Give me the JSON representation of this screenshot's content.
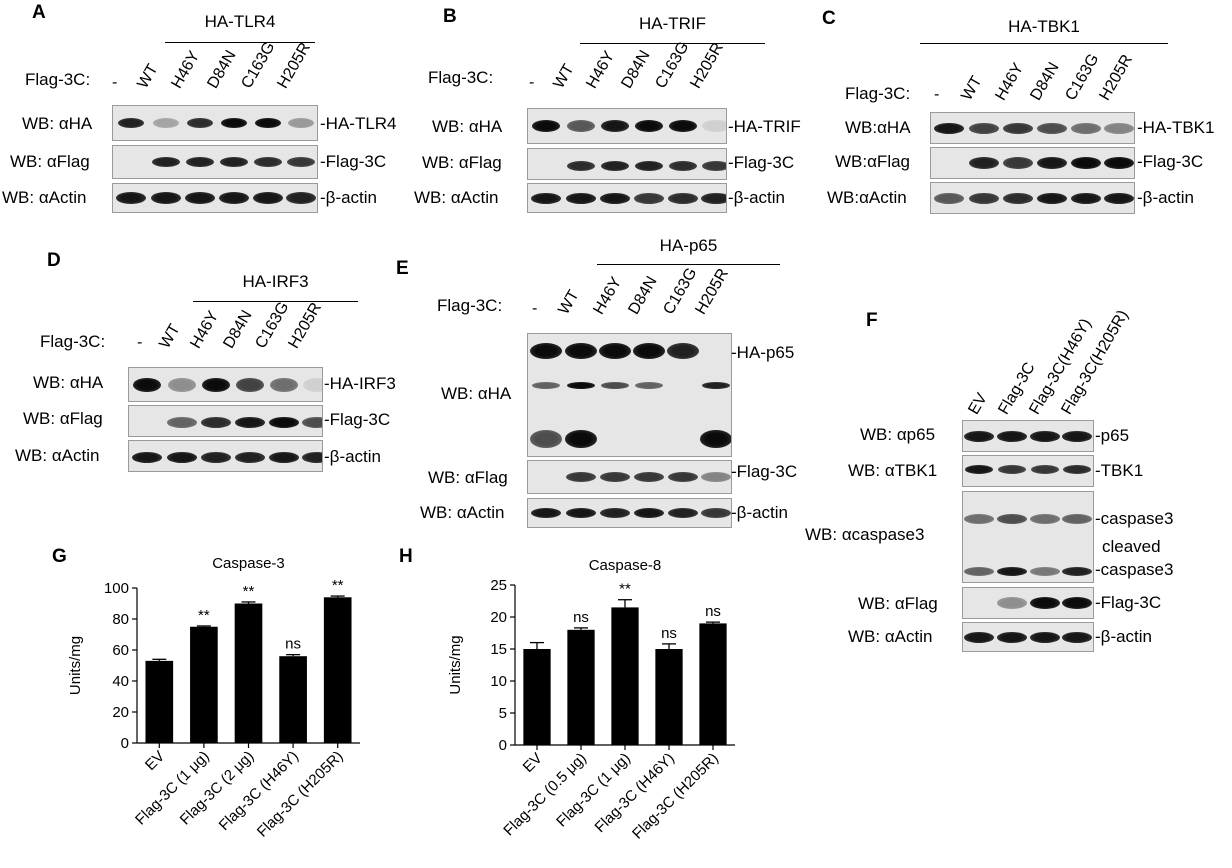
{
  "panels": {
    "A": {
      "label": "A",
      "header": "HA-TLR4",
      "flag_label": "Flag-3C:",
      "lanes": [
        "-",
        "WT",
        "H46Y",
        "D84N",
        "C163G",
        "H205R"
      ],
      "rows": [
        {
          "wb": "WB: αHA",
          "right": "-HA-TLR4"
        },
        {
          "wb": "WB: αFlag",
          "right": "-Flag-3C"
        },
        {
          "wb": "WB: αActin",
          "right": "-β-actin"
        }
      ]
    },
    "B": {
      "label": "B",
      "header": "HA-TRIF",
      "flag_label": "Flag-3C:",
      "lanes": [
        "-",
        "WT",
        "H46Y",
        "D84N",
        "C163G",
        "H205R"
      ],
      "rows": [
        {
          "wb": "WB: αHA",
          "right": "-HA-TRIF"
        },
        {
          "wb": "WB: αFlag",
          "right": "-Flag-3C"
        },
        {
          "wb": "WB: αActin",
          "right": "-β-actin"
        }
      ]
    },
    "C": {
      "label": "C",
      "header": "HA-TBK1",
      "flag_label": "Flag-3C:",
      "lanes": [
        "-",
        "WT",
        "H46Y",
        "D84N",
        "C163G",
        "H205R"
      ],
      "rows": [
        {
          "wb": "WB:αHA",
          "right": "-HA-TBK1"
        },
        {
          "wb": "WB:αFlag",
          "right": "-Flag-3C"
        },
        {
          "wb": "WB:αActin",
          "right": "-β-actin"
        }
      ]
    },
    "D": {
      "label": "D",
      "header": "HA-IRF3",
      "flag_label": "Flag-3C:",
      "lanes": [
        "-",
        "WT",
        "H46Y",
        "D84N",
        "C163G",
        "H205R"
      ],
      "rows": [
        {
          "wb": "WB: αHA",
          "right": "-HA-IRF3"
        },
        {
          "wb": "WB: αFlag",
          "right": "-Flag-3C"
        },
        {
          "wb": "WB: αActin",
          "right": "-β-actin"
        }
      ]
    },
    "E": {
      "label": "E",
      "header": "HA-p65",
      "flag_label": "Flag-3C:",
      "lanes": [
        "-",
        "WT",
        "H46Y",
        "D84N",
        "C163G",
        "H205R"
      ],
      "rows": [
        {
          "wb": "WB: αHA",
          "right": "-HA-p65"
        },
        {
          "wb": "WB: αFlag",
          "right": "-Flag-3C"
        },
        {
          "wb": "WB: αActin",
          "right": "-β-actin"
        }
      ]
    },
    "F": {
      "label": "F",
      "lanes": [
        "EV",
        "Flag-3C",
        "Flag-3C(H46Y)",
        "Flag-3C(H205R)"
      ],
      "rows": [
        {
          "wb": "WB: αp65",
          "right": "-p65"
        },
        {
          "wb": "WB: αTBK1",
          "right": "-TBK1"
        },
        {
          "wb": "WB: αcaspase3",
          "right": "-caspase3"
        },
        {
          "wb": "WB: αFlag",
          "right": "-Flag-3C"
        },
        {
          "wb": "WB: αActin",
          "right": "-β-actin"
        }
      ],
      "cleaved_label": "cleaved",
      "cleaved_band": "-caspase3"
    },
    "G": {
      "label": "G"
    },
    "H": {
      "label": "H"
    }
  },
  "chart_data": [
    {
      "type": "bar",
      "title": "Caspase-3",
      "ylabel": "Units/mg",
      "ylim": [
        0,
        100
      ],
      "yticks": [
        0,
        20,
        40,
        60,
        80,
        100
      ],
      "categories": [
        "EV",
        "Flag-3C (1 μg)",
        "Flag-3C (2 μg)",
        "Flag-3C (H46Y)",
        "Flag-3C (H205R)"
      ],
      "values": [
        53,
        75,
        90,
        56,
        94
      ],
      "errors": [
        1,
        0.5,
        1,
        1,
        0.8
      ],
      "annotations": [
        "",
        "**",
        "**",
        "ns",
        "**"
      ]
    },
    {
      "type": "bar",
      "title": "Caspase-8",
      "ylabel": "Units/mg",
      "ylim": [
        0,
        25
      ],
      "yticks": [
        0,
        5,
        10,
        15,
        20,
        25
      ],
      "categories": [
        "EV",
        "Flag-3C (0.5 μg)",
        "Flag-3C (1 μg)",
        "Flag-3C (H46Y)",
        "Flag-3C (H205R)"
      ],
      "values": [
        15,
        18,
        21.5,
        15,
        19
      ],
      "errors": [
        1,
        0.3,
        1.2,
        0.8,
        0.2
      ],
      "annotations": [
        "",
        "ns",
        "**",
        "ns",
        "ns"
      ]
    }
  ]
}
